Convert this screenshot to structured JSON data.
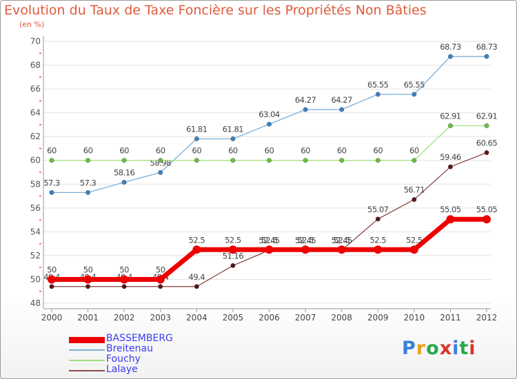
{
  "header": {
    "title": "Evolution du Taux de Taxe Foncière sur les Propriétés Non Bâties",
    "unit": "(en %)"
  },
  "logo": {
    "text": "Proxiti",
    "colors": [
      "#3a7fd9",
      "#e8a21a",
      "#2aa84a",
      "#d9342b",
      "#3a7fd9",
      "#2aa84a",
      "#d9342b"
    ]
  },
  "chart_data": {
    "type": "line",
    "title": "Evolution du Taux de Taxe Foncière sur les Propriétés Non Bâties",
    "ylabel": "(en %)",
    "xlabel": "",
    "ylim": [
      48,
      70
    ],
    "yticks": [
      48,
      50,
      52,
      54,
      56,
      58,
      60,
      62,
      64,
      66,
      68,
      70
    ],
    "grid": "horizontal",
    "legend_position": "bottom-left",
    "x": [
      "2000",
      "2001",
      "2002",
      "2003",
      "2004",
      "2005",
      "2006",
      "2007",
      "2008",
      "2009",
      "2010",
      "2011",
      "2012"
    ],
    "series": [
      {
        "name": "Breitenau",
        "color": "#7aaed8",
        "marker": "#3a82c4",
        "width": 1.3,
        "values": [
          57.3,
          57.3,
          58.16,
          58.98,
          61.81,
          61.81,
          63.04,
          64.27,
          64.27,
          65.55,
          65.55,
          68.73,
          68.73
        ],
        "labels": [
          "57.3",
          "57.3",
          "58.16",
          "58.98",
          "61.81",
          "61.81",
          "63.04",
          "64.27",
          "64.27",
          "65.55",
          "65.55",
          "68.73",
          "68.73"
        ]
      },
      {
        "name": "Fouchy",
        "color": "#9ee07a",
        "marker": "#6bc23d",
        "width": 1.3,
        "values": [
          60,
          60,
          60,
          60,
          60,
          60,
          60,
          60,
          60,
          60,
          60,
          62.91,
          62.91
        ],
        "labels": [
          "60",
          "60",
          "60",
          "60",
          "60",
          "60",
          "60",
          "60",
          "60",
          "60",
          "60",
          "62.91",
          "62.91"
        ]
      },
      {
        "name": "Lalaye",
        "color": "#8a4a4a",
        "marker": "#5a1616",
        "width": 1.3,
        "values": [
          49.4,
          49.4,
          49.4,
          49.4,
          49.4,
          51.16,
          52.45,
          52.45,
          52.45,
          55.07,
          56.71,
          59.46,
          60.65
        ],
        "labels": [
          "49.4",
          "49.4",
          "49.4",
          "49.4",
          "49.4",
          "51.16",
          "52.45",
          "52.45",
          "52.45",
          "55.07",
          "56.71",
          "59.46",
          "60.65"
        ]
      },
      {
        "name": "BASSEMBERG",
        "color": "#ee0000",
        "marker": "#ee0000",
        "width": 7,
        "values": [
          50,
          50,
          50,
          50,
          52.5,
          52.5,
          52.5,
          52.5,
          52.5,
          52.5,
          52.5,
          55.05,
          55.05
        ],
        "labels": [
          "50",
          "50",
          "50",
          "50",
          "52.5",
          "52.5",
          "52.5",
          "52.5",
          "52.5",
          "52.5",
          "52.5",
          "55.05",
          "55.05"
        ]
      }
    ],
    "legend_order": [
      "BASSEMBERG",
      "Breitenau",
      "Fouchy",
      "Lalaye"
    ]
  }
}
